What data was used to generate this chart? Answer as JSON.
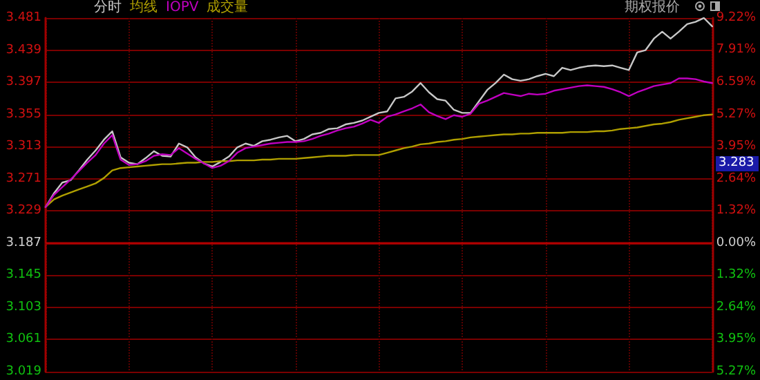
{
  "chart_data": {
    "type": "line",
    "categories": [
      null,
      null,
      null,
      null,
      null,
      null,
      null,
      null,
      null,
      null,
      null,
      null,
      null,
      null,
      null,
      null,
      null,
      null,
      null,
      null,
      null,
      null,
      null,
      null,
      null,
      null,
      null,
      null,
      null,
      null,
      null,
      null,
      null,
      null,
      null,
      null,
      null,
      null,
      null,
      null,
      null,
      null,
      null,
      null,
      null,
      null,
      null,
      null,
      null,
      null,
      null,
      null,
      null,
      null,
      null,
      null,
      null,
      null,
      null,
      null,
      null,
      null,
      null,
      null,
      null,
      null,
      null,
      null,
      null,
      null,
      null,
      null,
      null,
      null,
      null,
      null,
      null,
      null,
      null,
      null,
      null
    ],
    "ylim": [
      3.019,
      3.481
    ],
    "yticks": [
      3.019,
      3.061,
      3.103,
      3.145,
      3.187,
      3.229,
      3.271,
      3.313,
      3.355,
      3.397,
      3.439,
      3.481
    ],
    "y2lim": [
      -5.27,
      9.22
    ],
    "y2ticks": [
      {
        "value": -5.27,
        "label": "5.27%"
      },
      {
        "value": -3.95,
        "label": "3.95%"
      },
      {
        "value": -2.64,
        "label": "2.64%"
      },
      {
        "value": -1.32,
        "label": "1.32%"
      },
      {
        "value": 0,
        "label": "0.00%"
      },
      {
        "value": 1.32,
        "label": "1.32%"
      },
      {
        "value": 2.64,
        "label": "2.64%"
      },
      {
        "value": 3.95,
        "label": "3.95%"
      },
      {
        "value": 5.27,
        "label": "5.27%"
      },
      {
        "value": 6.59,
        "label": "6.59%"
      },
      {
        "value": 7.91,
        "label": "7.91%"
      },
      {
        "value": 9.22,
        "label": "9.22%"
      }
    ],
    "tick_labels": "y",
    "grid": true,
    "line_style": "solid",
    "ref_lines": [
      {
        "axis": "y",
        "value": 3.187,
        "color": "#b00000"
      }
    ],
    "annotations": [
      "成交量",
      "期权报价",
      "3.283"
    ],
    "series": [
      {
        "name": "分时",
        "color": "#c8c8c8",
        "values": [
          3.234,
          3.252,
          3.266,
          3.269,
          3.282,
          3.296,
          3.308,
          3.322,
          3.333,
          3.299,
          3.292,
          3.29,
          3.298,
          3.307,
          3.301,
          3.3,
          3.317,
          3.312,
          3.299,
          3.291,
          3.287,
          3.293,
          3.3,
          3.312,
          3.317,
          3.314,
          3.32,
          3.322,
          3.325,
          3.327,
          3.32,
          3.323,
          3.329,
          3.331,
          3.336,
          3.337,
          3.342,
          3.344,
          3.347,
          3.352,
          3.357,
          3.359,
          3.376,
          3.378,
          3.385,
          3.396,
          3.384,
          3.375,
          3.373,
          3.361,
          3.357,
          3.357,
          3.372,
          3.387,
          3.396,
          3.407,
          3.401,
          3.399,
          3.401,
          3.405,
          3.408,
          3.405,
          3.416,
          3.413,
          3.416,
          3.418,
          3.419,
          3.418,
          3.419,
          3.416,
          3.413,
          3.436,
          3.439,
          3.454,
          3.463,
          3.454,
          3.463,
          3.473,
          3.476,
          3.481,
          3.47
        ]
      },
      {
        "name": "均线",
        "color": "#b0a000",
        "values": [
          3.234,
          3.244,
          3.249,
          3.253,
          3.257,
          3.261,
          3.265,
          3.272,
          3.282,
          3.285,
          3.286,
          3.287,
          3.288,
          3.289,
          3.29,
          3.29,
          3.291,
          3.292,
          3.292,
          3.293,
          3.293,
          3.294,
          3.294,
          3.295,
          3.295,
          3.295,
          3.296,
          3.296,
          3.297,
          3.297,
          3.297,
          3.298,
          3.299,
          3.3,
          3.301,
          3.301,
          3.301,
          3.302,
          3.302,
          3.302,
          3.302,
          3.305,
          3.308,
          3.311,
          3.313,
          3.316,
          3.317,
          3.319,
          3.32,
          3.322,
          3.323,
          3.325,
          3.326,
          3.327,
          3.328,
          3.329,
          3.329,
          3.33,
          3.33,
          3.331,
          3.331,
          3.331,
          3.331,
          3.332,
          3.332,
          3.332,
          3.333,
          3.333,
          3.334,
          3.336,
          3.337,
          3.338,
          3.34,
          3.342,
          3.343,
          3.345,
          3.348,
          3.35,
          3.352,
          3.354,
          3.355
        ]
      },
      {
        "name": "IOPV",
        "color": "#c000c0",
        "values": [
          3.234,
          3.25,
          3.26,
          3.27,
          3.281,
          3.292,
          3.302,
          3.317,
          3.328,
          3.296,
          3.289,
          3.29,
          3.294,
          3.301,
          3.303,
          3.302,
          3.311,
          3.304,
          3.297,
          3.291,
          3.285,
          3.288,
          3.294,
          3.305,
          3.311,
          3.313,
          3.315,
          3.317,
          3.318,
          3.319,
          3.319,
          3.32,
          3.323,
          3.327,
          3.33,
          3.334,
          3.337,
          3.339,
          3.343,
          3.348,
          3.344,
          3.352,
          3.355,
          3.359,
          3.363,
          3.368,
          3.358,
          3.353,
          3.349,
          3.354,
          3.352,
          3.356,
          3.369,
          3.373,
          3.378,
          3.383,
          3.381,
          3.379,
          3.382,
          3.381,
          3.382,
          3.386,
          3.388,
          3.39,
          3.392,
          3.393,
          3.392,
          3.391,
          3.388,
          3.384,
          3.379,
          3.384,
          3.388,
          3.392,
          3.394,
          3.396,
          3.402,
          3.402,
          3.401,
          3.398,
          3.396
        ]
      }
    ]
  }
}
